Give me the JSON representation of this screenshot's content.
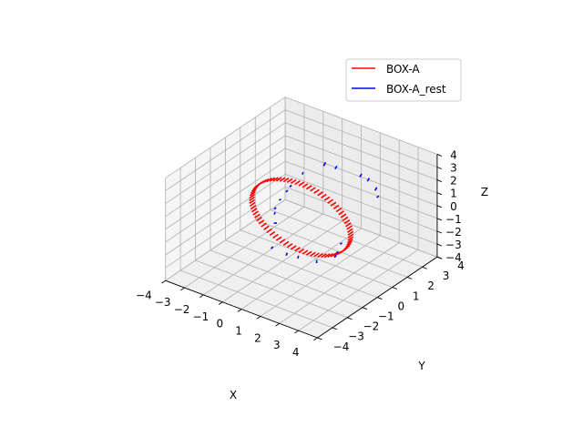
{
  "chart_data": {
    "type": "3d-line-segments",
    "title": "",
    "xlabel": "X",
    "ylabel": "Y",
    "zlabel": "Z",
    "xlim": [
      -4,
      4
    ],
    "ylim": [
      -4,
      4
    ],
    "zlim": [
      -4,
      4
    ],
    "xticks": [
      "−4",
      "−3",
      "−2",
      "−1",
      "0",
      "1",
      "2",
      "3",
      "4"
    ],
    "yticks": [
      "−4",
      "−3",
      "−2",
      "−1",
      "0",
      "1",
      "2",
      "3",
      "4"
    ],
    "zticks": [
      "−4",
      "−3",
      "−2",
      "−1",
      "0",
      "1",
      "2",
      "3",
      "4"
    ],
    "grid": true,
    "legend_position": "top-right",
    "series": [
      {
        "name": "BOX-A",
        "color": "#ff0000",
        "shape": "ring",
        "plane": "x-z",
        "radius": 2.6,
        "center": [
          0,
          0,
          0
        ],
        "segment_count": 80,
        "segment_length": 0.35,
        "segment_direction": "y"
      },
      {
        "name": "BOX-A_rest",
        "color": "#0000ff",
        "segments": [
          [
            [
              -0.4,
              2.0,
              2.2
            ],
            [
              -0.3,
              2.0,
              2.55
            ]
          ],
          [
            [
              0.2,
              2.0,
              2.3
            ],
            [
              0.3,
              2.0,
              2.6
            ]
          ],
          [
            [
              1.5,
              2.0,
              2.4
            ],
            [
              1.6,
              2.0,
              2.7
            ]
          ],
          [
            [
              1.9,
              2.0,
              2.3
            ],
            [
              2.0,
              2.0,
              2.6
            ]
          ],
          [
            [
              2.3,
              2.0,
              1.8
            ],
            [
              2.4,
              2.0,
              2.1
            ]
          ],
          [
            [
              2.4,
              2.0,
              1.3
            ],
            [
              2.5,
              2.0,
              1.5
            ]
          ],
          [
            [
              -0.9,
              1.2,
              1.9
            ],
            [
              -0.85,
              1.2,
              2.1
            ]
          ],
          [
            [
              -1.4,
              1.0,
              0.8
            ],
            [
              -1.3,
              1.0,
              1.0
            ]
          ],
          [
            [
              -1.6,
              1.0,
              0.3
            ],
            [
              -1.5,
              1.0,
              0.5
            ]
          ],
          [
            [
              -1.8,
              0.8,
              -0.3
            ],
            [
              -1.7,
              0.8,
              -0.15
            ]
          ],
          [
            [
              -1.9,
              0.6,
              -0.9
            ],
            [
              -1.8,
              0.6,
              -0.7
            ]
          ],
          [
            [
              -1.9,
              0.6,
              -1.3
            ],
            [
              -1.85,
              0.6,
              -1.1
            ]
          ],
          [
            [
              -1.6,
              0.2,
              -1.5
            ],
            [
              -1.45,
              0.2,
              -1.4
            ]
          ],
          [
            [
              -1.2,
              -0.5,
              -2.7
            ],
            [
              -1.1,
              -0.5,
              -2.5
            ]
          ],
          [
            [
              -0.4,
              -0.5,
              -2.8
            ],
            [
              -0.35,
              -0.5,
              -2.55
            ]
          ],
          [
            [
              0.2,
              -0.5,
              -2.7
            ],
            [
              0.25,
              -0.5,
              -2.45
            ]
          ],
          [
            [
              1.2,
              -0.5,
              -2.5
            ],
            [
              1.2,
              -0.5,
              -2.25
            ]
          ],
          [
            [
              1.9,
              -0.2,
              -1.9
            ],
            [
              2.0,
              -0.2,
              -1.7
            ]
          ],
          [
            [
              2.0,
              -0.2,
              -1.5
            ],
            [
              2.1,
              -0.2,
              -1.35
            ]
          ],
          [
            [
              2.2,
              -0.2,
              -0.7
            ],
            [
              2.3,
              -0.2,
              -0.55
            ]
          ]
        ]
      }
    ]
  }
}
